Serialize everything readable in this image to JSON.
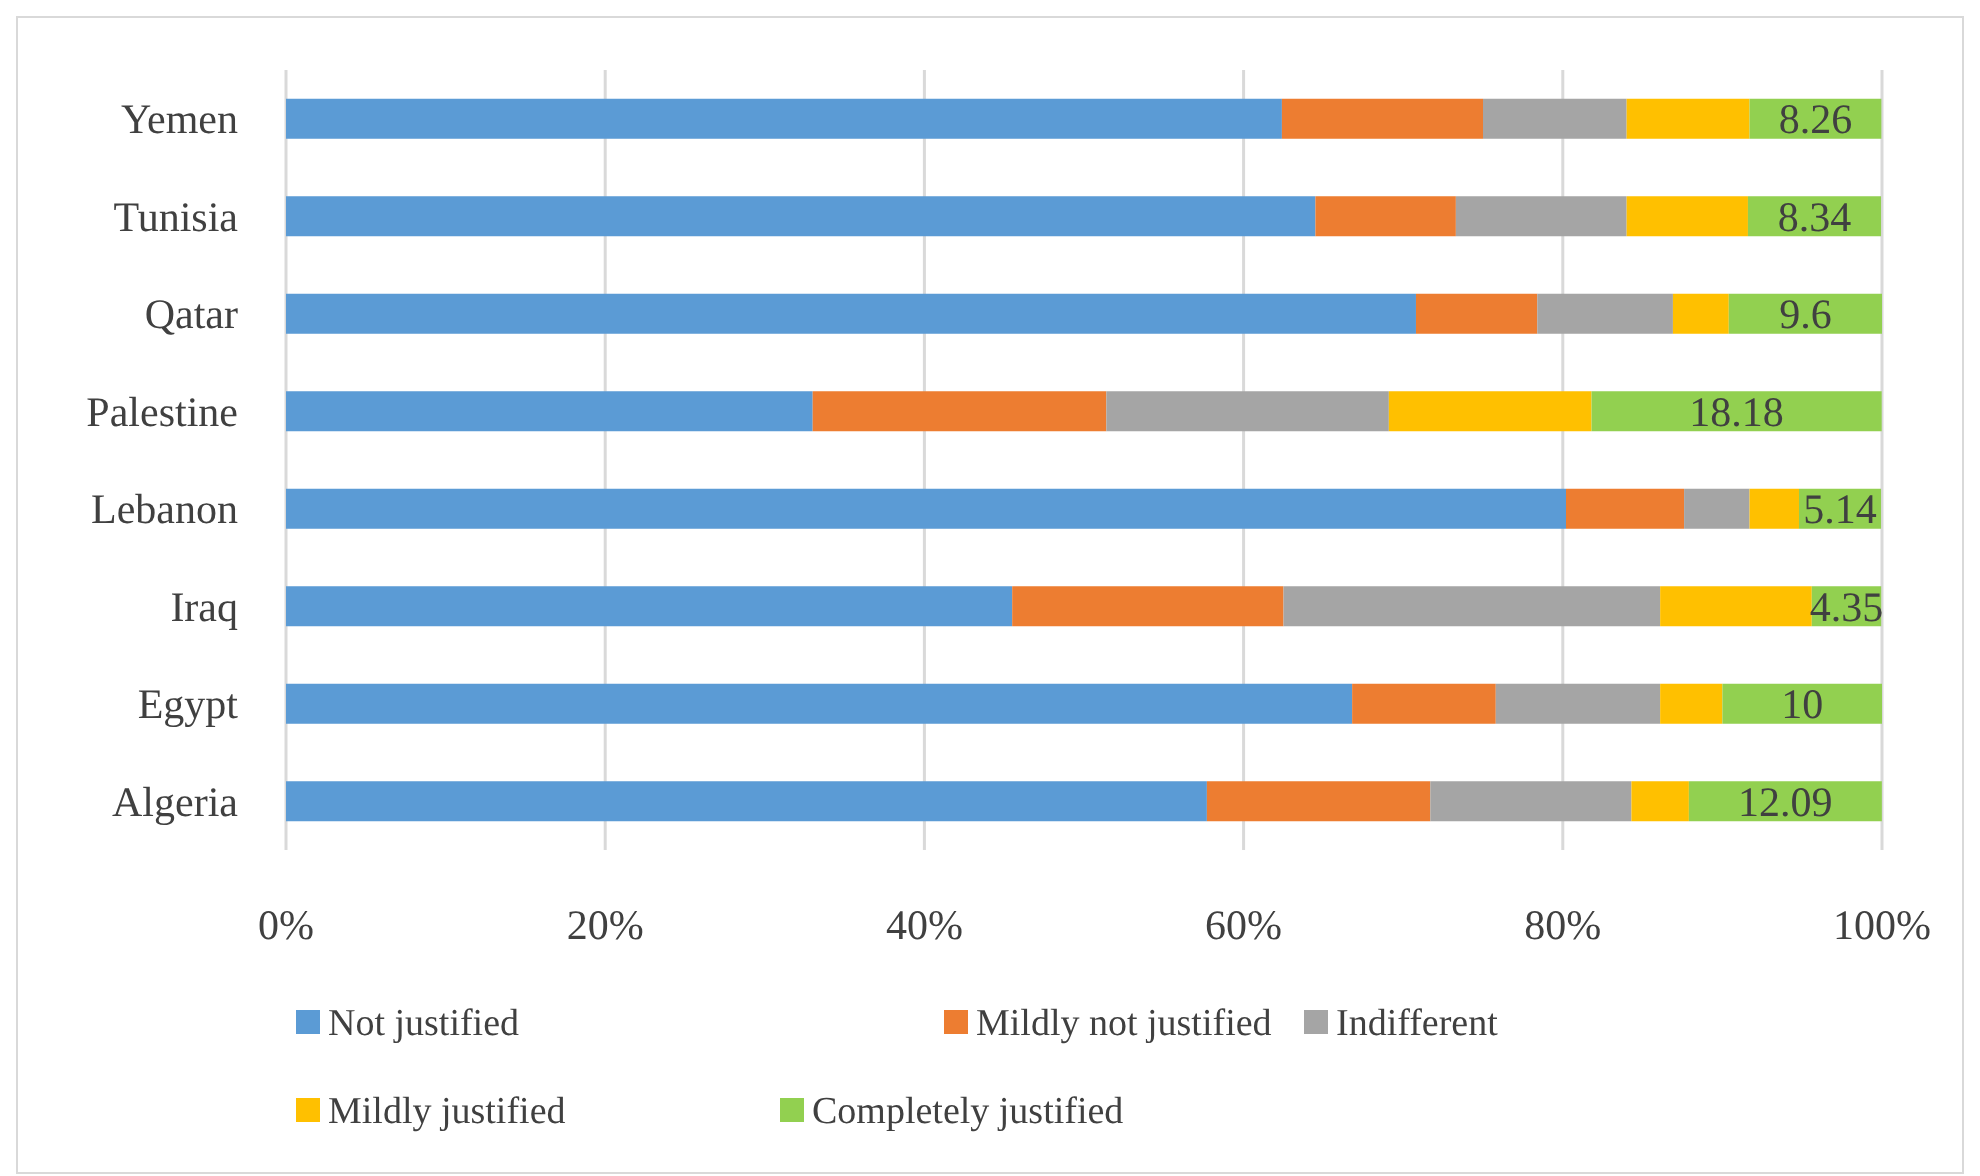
{
  "chart_data": {
    "type": "bar",
    "orientation": "horizontal",
    "stacked": true,
    "categories": [
      "Yemen",
      "Tunisia",
      "Qatar",
      "Palestine",
      "Lebanon",
      "Iraq",
      "Egypt",
      "Algeria"
    ],
    "series": [
      {
        "name": "Not justified",
        "color": "#5b9bd5",
        "values": [
          62.4,
          64.5,
          70.8,
          33.0,
          80.2,
          45.5,
          66.8,
          57.7
        ]
      },
      {
        "name": "Mildly not justified",
        "color": "#ed7d31",
        "values": [
          12.6,
          8.8,
          7.6,
          18.4,
          7.4,
          17.0,
          9.0,
          14.0
        ]
      },
      {
        "name": "Indifferent",
        "color": "#a5a5a5",
        "values": [
          9.0,
          10.7,
          8.5,
          17.7,
          4.1,
          23.6,
          10.3,
          12.6
        ]
      },
      {
        "name": "Mildly justified",
        "color": "#ffc000",
        "values": [
          7.7,
          7.6,
          3.5,
          12.7,
          3.1,
          9.5,
          3.9,
          3.6
        ]
      },
      {
        "name": "Completely justified",
        "color": "#92d050",
        "values": [
          8.26,
          8.34,
          9.6,
          18.18,
          5.14,
          4.35,
          10,
          12.09
        ],
        "value_labels": [
          "8.26",
          "8.34",
          "9.6",
          "18.18",
          "5.14",
          "4.35",
          "10",
          "12.09"
        ]
      }
    ],
    "xlim": [
      0,
      100
    ],
    "xticks": [
      {
        "value": 0,
        "label": "0%"
      },
      {
        "value": 20,
        "label": "20%"
      },
      {
        "value": 40,
        "label": "40%"
      },
      {
        "value": 60,
        "label": "60%"
      },
      {
        "value": 80,
        "label": "80%"
      },
      {
        "value": 100,
        "label": "100%"
      }
    ],
    "grid": "x",
    "legend": "bottom"
  }
}
